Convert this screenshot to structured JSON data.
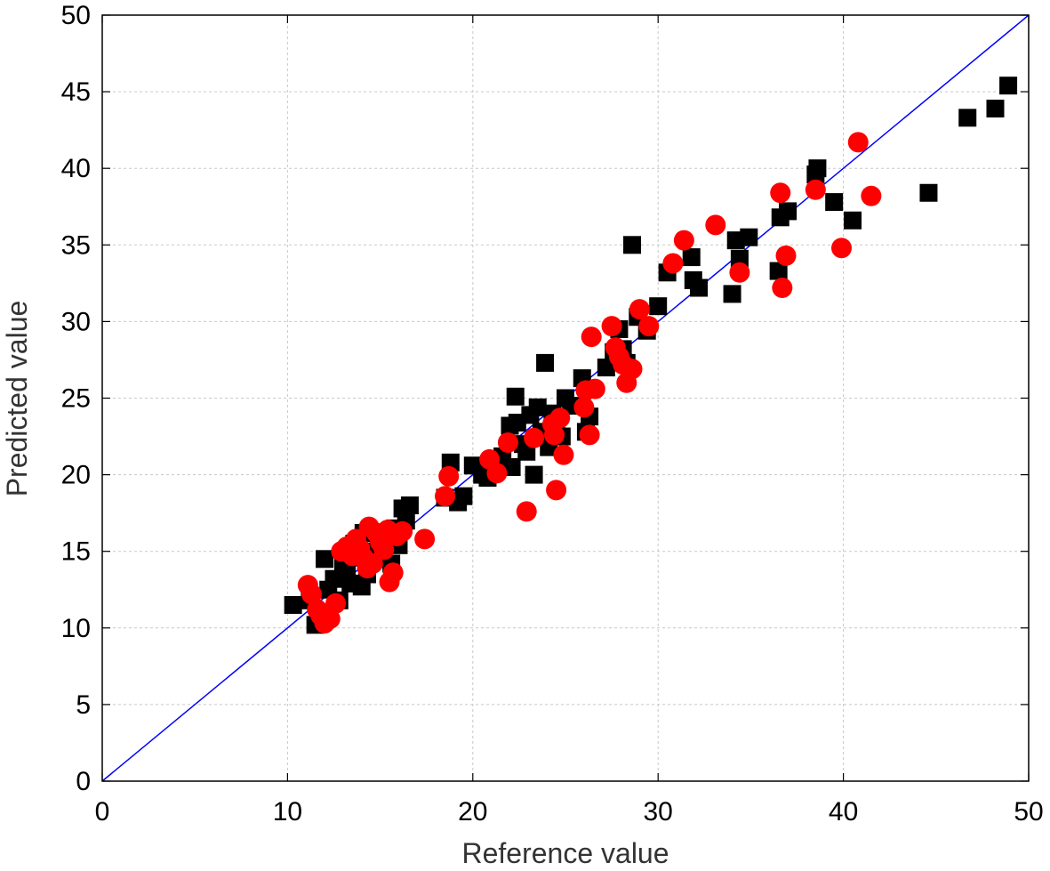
{
  "chart_data": {
    "type": "scatter",
    "title": "",
    "xlabel": "Reference value",
    "ylabel": "Predicted value",
    "xlim": [
      0,
      50
    ],
    "ylim": [
      0,
      50
    ],
    "xticks": [
      0,
      10,
      20,
      30,
      40,
      50
    ],
    "yticks": [
      0,
      5,
      10,
      15,
      20,
      25,
      30,
      35,
      40,
      45,
      50
    ],
    "grid": true,
    "reference_line": {
      "x": [
        0,
        50
      ],
      "y": [
        0,
        50
      ],
      "color": "#0000ff"
    },
    "colors": {
      "squares": "#000000",
      "circles": "#ff0000"
    },
    "series": [
      {
        "marker": "square",
        "color": "#000000",
        "points": [
          [
            10.3,
            11.5
          ],
          [
            11.2,
            11.8
          ],
          [
            11.5,
            10.2
          ],
          [
            11.8,
            11.0
          ],
          [
            12.0,
            14.5
          ],
          [
            12.2,
            12.5
          ],
          [
            12.5,
            13.2
          ],
          [
            12.8,
            11.8
          ],
          [
            13.0,
            14.0
          ],
          [
            13.2,
            13.6
          ],
          [
            13.4,
            12.9
          ],
          [
            13.6,
            15.5
          ],
          [
            13.8,
            14.6
          ],
          [
            14.0,
            12.7
          ],
          [
            14.1,
            16.2
          ],
          [
            14.3,
            13.5
          ],
          [
            14.5,
            15.0
          ],
          [
            14.8,
            14.5
          ],
          [
            15.0,
            16.0
          ],
          [
            15.3,
            15.6
          ],
          [
            15.6,
            14.2
          ],
          [
            15.8,
            16.5
          ],
          [
            16.0,
            15.4
          ],
          [
            16.2,
            17.8
          ],
          [
            16.6,
            18.0
          ],
          [
            16.4,
            17.0
          ],
          [
            18.5,
            18.5
          ],
          [
            18.8,
            20.8
          ],
          [
            19.2,
            18.2
          ],
          [
            19.5,
            18.6
          ],
          [
            20.0,
            20.6
          ],
          [
            20.5,
            20.0
          ],
          [
            20.8,
            19.8
          ],
          [
            21.0,
            20.8
          ],
          [
            21.6,
            21.2
          ],
          [
            22.0,
            23.2
          ],
          [
            22.1,
            20.5
          ],
          [
            22.3,
            25.1
          ],
          [
            22.4,
            23.4
          ],
          [
            22.7,
            22.0
          ],
          [
            22.9,
            21.5
          ],
          [
            23.1,
            23.9
          ],
          [
            23.3,
            20.0
          ],
          [
            23.5,
            24.4
          ],
          [
            23.7,
            22.8
          ],
          [
            23.9,
            27.3
          ],
          [
            24.1,
            21.8
          ],
          [
            24.3,
            24.0
          ],
          [
            24.5,
            23.5
          ],
          [
            24.8,
            22.5
          ],
          [
            25.0,
            25.0
          ],
          [
            25.3,
            24.5
          ],
          [
            25.9,
            26.3
          ],
          [
            26.1,
            22.8
          ],
          [
            26.3,
            23.8
          ],
          [
            27.2,
            27.0
          ],
          [
            27.6,
            28.0
          ],
          [
            27.9,
            29.5
          ],
          [
            28.1,
            28.2
          ],
          [
            28.3,
            27.3
          ],
          [
            28.6,
            35.0
          ],
          [
            28.9,
            30.3
          ],
          [
            29.4,
            29.4
          ],
          [
            30.0,
            31.0
          ],
          [
            30.5,
            33.2
          ],
          [
            31.8,
            34.2
          ],
          [
            31.9,
            32.7
          ],
          [
            32.2,
            32.2
          ],
          [
            34.0,
            31.8
          ],
          [
            34.2,
            35.3
          ],
          [
            34.4,
            34.1
          ],
          [
            34.9,
            35.5
          ],
          [
            36.5,
            33.3
          ],
          [
            36.6,
            36.8
          ],
          [
            37.0,
            37.2
          ],
          [
            38.5,
            39.6
          ],
          [
            38.6,
            40.0
          ],
          [
            39.5,
            37.8
          ],
          [
            40.5,
            36.6
          ],
          [
            44.6,
            38.4
          ],
          [
            46.7,
            43.3
          ],
          [
            48.2,
            43.9
          ],
          [
            48.9,
            45.4
          ]
        ]
      },
      {
        "marker": "circle",
        "color": "#ff0000",
        "points": [
          [
            11.1,
            12.8
          ],
          [
            11.3,
            12.2
          ],
          [
            11.6,
            11.2
          ],
          [
            11.8,
            10.8
          ],
          [
            12.0,
            10.3
          ],
          [
            12.3,
            10.6
          ],
          [
            12.6,
            11.6
          ],
          [
            12.9,
            15.0
          ],
          [
            13.2,
            15.3
          ],
          [
            13.5,
            14.7
          ],
          [
            13.7,
            15.8
          ],
          [
            13.9,
            15.2
          ],
          [
            14.1,
            14.6
          ],
          [
            14.3,
            13.9
          ],
          [
            14.4,
            16.6
          ],
          [
            14.6,
            14.2
          ],
          [
            14.8,
            16.2
          ],
          [
            15.0,
            15.6
          ],
          [
            15.2,
            15.1
          ],
          [
            15.4,
            16.4
          ],
          [
            15.5,
            13.0
          ],
          [
            15.7,
            13.6
          ],
          [
            15.9,
            16.0
          ],
          [
            16.2,
            16.3
          ],
          [
            17.4,
            15.8
          ],
          [
            18.5,
            18.6
          ],
          [
            18.7,
            19.9
          ],
          [
            20.9,
            21.0
          ],
          [
            21.3,
            20.1
          ],
          [
            21.9,
            22.1
          ],
          [
            22.9,
            17.6
          ],
          [
            23.3,
            22.4
          ],
          [
            24.3,
            23.3
          ],
          [
            24.4,
            22.6
          ],
          [
            24.5,
            19.0
          ],
          [
            24.7,
            23.7
          ],
          [
            24.9,
            21.3
          ],
          [
            26.0,
            24.4
          ],
          [
            26.1,
            25.5
          ],
          [
            26.3,
            22.6
          ],
          [
            26.4,
            29.0
          ],
          [
            26.6,
            25.6
          ],
          [
            27.5,
            29.7
          ],
          [
            27.7,
            28.3
          ],
          [
            27.9,
            27.7
          ],
          [
            28.1,
            27.2
          ],
          [
            28.3,
            26.0
          ],
          [
            28.6,
            26.9
          ],
          [
            29.0,
            30.8
          ],
          [
            29.5,
            29.7
          ],
          [
            30.8,
            33.8
          ],
          [
            31.4,
            35.3
          ],
          [
            33.1,
            36.3
          ],
          [
            34.4,
            33.2
          ],
          [
            36.6,
            38.4
          ],
          [
            36.7,
            32.2
          ],
          [
            36.9,
            34.3
          ],
          [
            38.5,
            38.6
          ],
          [
            39.9,
            34.8
          ],
          [
            40.8,
            41.7
          ],
          [
            41.5,
            38.2
          ]
        ]
      }
    ]
  }
}
